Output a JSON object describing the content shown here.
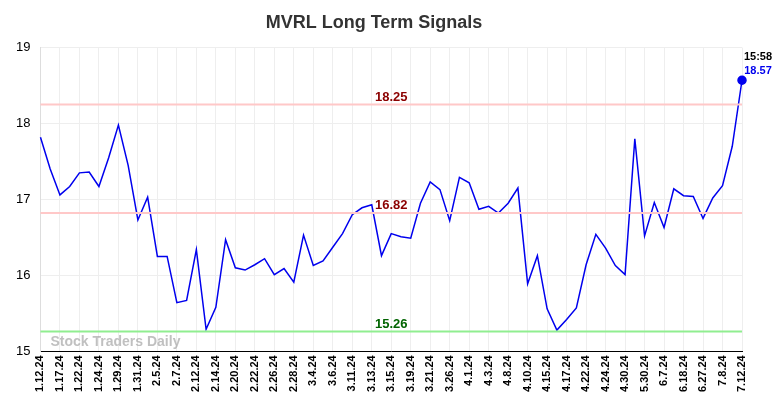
{
  "chart_data": {
    "type": "line",
    "title": "MVRL Long Term Signals",
    "categories": [
      "1.12.24",
      null,
      "1.17.24",
      null,
      "1.22.24",
      null,
      "1.24.24",
      null,
      "1.29.24",
      null,
      "1.31.24",
      null,
      "2.5.24",
      null,
      "2.7.24",
      null,
      "2.12.24",
      null,
      "2.14.24",
      null,
      "2.20.24",
      null,
      "2.22.24",
      null,
      "2.26.24",
      null,
      "2.28.24",
      null,
      "3.4.24",
      null,
      "3.6.24",
      null,
      "3.11.24",
      null,
      "3.13.24",
      null,
      "3.15.24",
      null,
      "3.19.24",
      null,
      "3.21.24",
      null,
      "3.26.24",
      null,
      "4.1.24",
      null,
      "4.3.24",
      null,
      "4.8.24",
      null,
      "4.10.24",
      null,
      "4.15.24",
      null,
      "4.17.24",
      null,
      "4.22.24",
      null,
      "4.24.24",
      null,
      "4.30.24",
      null,
      "5.30.24",
      null,
      "6.7.24",
      null,
      "6.18.24",
      null,
      "6.27.24",
      null,
      "7.8.24",
      null,
      "7.12.24"
    ],
    "values": [
      17.82,
      17.4,
      17.06,
      17.17,
      17.35,
      17.36,
      17.17,
      17.55,
      17.98,
      17.45,
      16.73,
      17.03,
      16.25,
      16.25,
      15.64,
      15.67,
      16.34,
      15.29,
      15.58,
      16.47,
      16.1,
      16.07,
      16.14,
      16.22,
      16.01,
      16.09,
      15.91,
      16.53,
      16.13,
      16.19,
      16.37,
      16.55,
      16.8,
      16.89,
      16.93,
      16.26,
      16.55,
      16.51,
      16.49,
      16.95,
      17.23,
      17.13,
      16.72,
      17.29,
      17.22,
      16.87,
      16.91,
      16.82,
      16.95,
      17.15,
      15.89,
      16.26,
      15.56,
      15.28,
      15.42,
      15.57,
      16.14,
      16.54,
      16.36,
      16.13,
      16.01,
      17.8,
      16.52,
      16.96,
      16.63,
      17.14,
      17.05,
      17.04,
      16.75,
      17.02,
      17.18,
      17.7,
      18.57
    ],
    "color": "#0000ee",
    "ylim": [
      15,
      19
    ],
    "yticks": [
      15,
      16,
      17,
      18,
      19
    ],
    "grid": true,
    "reference_lines": [
      {
        "value": 18.25,
        "label": "18.25",
        "color": "#ffc8c8",
        "label_color": "#8b0000"
      },
      {
        "value": 16.82,
        "label": "16.82",
        "color": "#ffc8c8",
        "label_color": "#8b0000"
      },
      {
        "value": 15.26,
        "label": "15.26",
        "color": "#90ee90",
        "label_color": "#006400"
      }
    ],
    "last_point": {
      "time": "15:58",
      "label": "18.57",
      "color": "#0000ee"
    },
    "watermark": "Stock Traders Daily"
  }
}
